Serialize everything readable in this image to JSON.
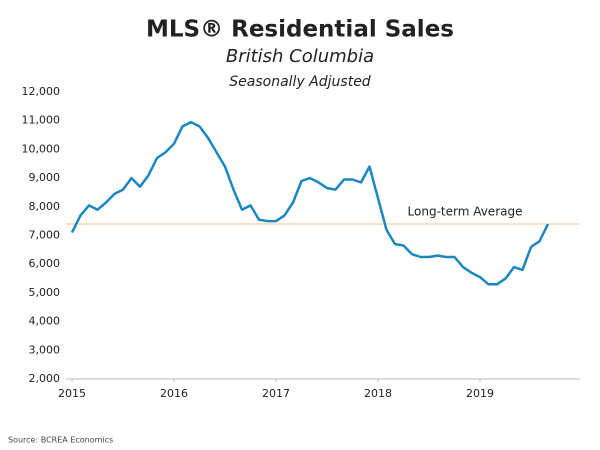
{
  "chart_data": {
    "type": "line",
    "title": "MLS® Residential Sales",
    "subtitle": "British Columbia",
    "note": "Seasonally Adjusted",
    "source": "Source: BCREA Economics",
    "color": "#1b87c1",
    "x": [
      2015,
      2015.083,
      2015.167,
      2015.25,
      2015.333,
      2015.417,
      2015.5,
      2015.583,
      2015.667,
      2015.75,
      2015.833,
      2015.917,
      2016,
      2016.083,
      2016.167,
      2016.25,
      2016.333,
      2016.417,
      2016.5,
      2016.583,
      2016.667,
      2016.75,
      2016.833,
      2016.917,
      2017,
      2017.083,
      2017.167,
      2017.25,
      2017.333,
      2017.417,
      2017.5,
      2017.583,
      2017.667,
      2017.75,
      2017.833,
      2017.917,
      2018,
      2018.083,
      2018.167,
      2018.25,
      2018.333,
      2018.417,
      2018.5,
      2018.583,
      2018.667,
      2018.75,
      2018.833,
      2018.917,
      2019,
      2019.083,
      2019.167,
      2019.25,
      2019.333,
      2019.417,
      2019.5,
      2019.583,
      2019.667
    ],
    "values": [
      7100,
      7700,
      8050,
      7900,
      8150,
      8450,
      8600,
      9000,
      8700,
      9100,
      9700,
      9900,
      10200,
      10800,
      10950,
      10800,
      10400,
      9900,
      9400,
      8600,
      7900,
      8050,
      7550,
      7500,
      7500,
      7700,
      8150,
      8900,
      9000,
      8850,
      8650,
      8600,
      8950,
      8950,
      8850,
      9400,
      8300,
      7200,
      6700,
      6650,
      6350,
      6250,
      6250,
      6300,
      6250,
      6250,
      5900,
      5700,
      5550,
      5300,
      5300,
      5500,
      5900,
      5800,
      6600,
      6800,
      7400
    ],
    "average": {
      "value": 7400,
      "label": "Long-term Average",
      "color": "#f6c58c"
    },
    "xlim": [
      2015,
      2020
    ],
    "xticks": [
      2015,
      2016,
      2017,
      2018,
      2019
    ],
    "ylim": [
      2000,
      12000
    ],
    "yticks": [
      {
        "value": 2000,
        "label": "2,000"
      },
      {
        "value": 3000,
        "label": "3,000"
      },
      {
        "value": 4000,
        "label": "4,000"
      },
      {
        "value": 5000,
        "label": "5,000"
      },
      {
        "value": 6000,
        "label": "6,000"
      },
      {
        "value": 7000,
        "label": "7,000"
      },
      {
        "value": 8000,
        "label": "8,000"
      },
      {
        "value": 9000,
        "label": "9,000"
      },
      {
        "value": 10000,
        "label": "10,000"
      },
      {
        "value": 11000,
        "label": "11,000"
      },
      {
        "value": 12000,
        "label": "12,000"
      }
    ],
    "grid": false
  }
}
